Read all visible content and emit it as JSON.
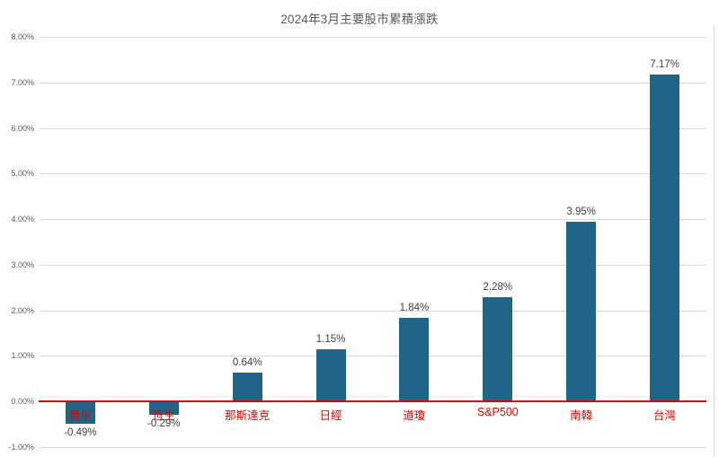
{
  "chart_data": {
    "type": "bar",
    "title": "2024年3月主要股市累積漲跌",
    "categories": [
      "費半",
      "恆生",
      "那斯達克",
      "日經",
      "道瓊",
      "S&P500",
      "南韓",
      "台灣"
    ],
    "values": [
      -0.49,
      -0.29,
      0.64,
      1.15,
      1.84,
      2.28,
      3.95,
      7.17
    ],
    "value_labels": [
      "-0.49%",
      "-0.29%",
      "0.64%",
      "1.15%",
      "1.84%",
      "2.28%",
      "3.95%",
      "7.17%"
    ],
    "xlabel": "",
    "ylabel": "",
    "ylim": [
      -1,
      8
    ],
    "ytick_step": 1,
    "ytick_labels": [
      "8.00%",
      "7.00%",
      "6.00%",
      "5.00%",
      "4.00%",
      "3.00%",
      "2.00%",
      "1.00%",
      "0.00%",
      "-1.00%"
    ],
    "ytick_values": [
      8,
      7,
      6,
      5,
      4,
      3,
      2,
      1,
      0,
      -1
    ],
    "grid": true,
    "legend_position": "none"
  },
  "colors": {
    "bar": "#206587",
    "zero_line": "#e60000",
    "category_label": "#e60000",
    "value_label": "#404040",
    "gridline": "#d9d9d9",
    "axis_text": "#595959",
    "title_text": "#595959",
    "background": "#ffffff"
  }
}
